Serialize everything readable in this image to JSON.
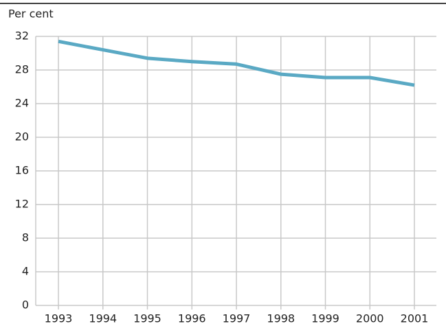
{
  "chart_data": {
    "type": "line",
    "y_label": "Per cent",
    "categories": [
      "1993",
      "1994",
      "1995",
      "1996",
      "1997",
      "1998",
      "1999",
      "2000",
      "2001"
    ],
    "series": [
      {
        "name": null,
        "color": "#5aa9c4",
        "values": [
          31.4,
          30.4,
          29.4,
          29.0,
          28.7,
          27.5,
          27.1,
          27.1,
          26.2
        ]
      }
    ],
    "ylim": [
      0,
      32
    ],
    "yticks": [
      0,
      4,
      8,
      12,
      16,
      20,
      24,
      28,
      32
    ],
    "grid": true
  }
}
